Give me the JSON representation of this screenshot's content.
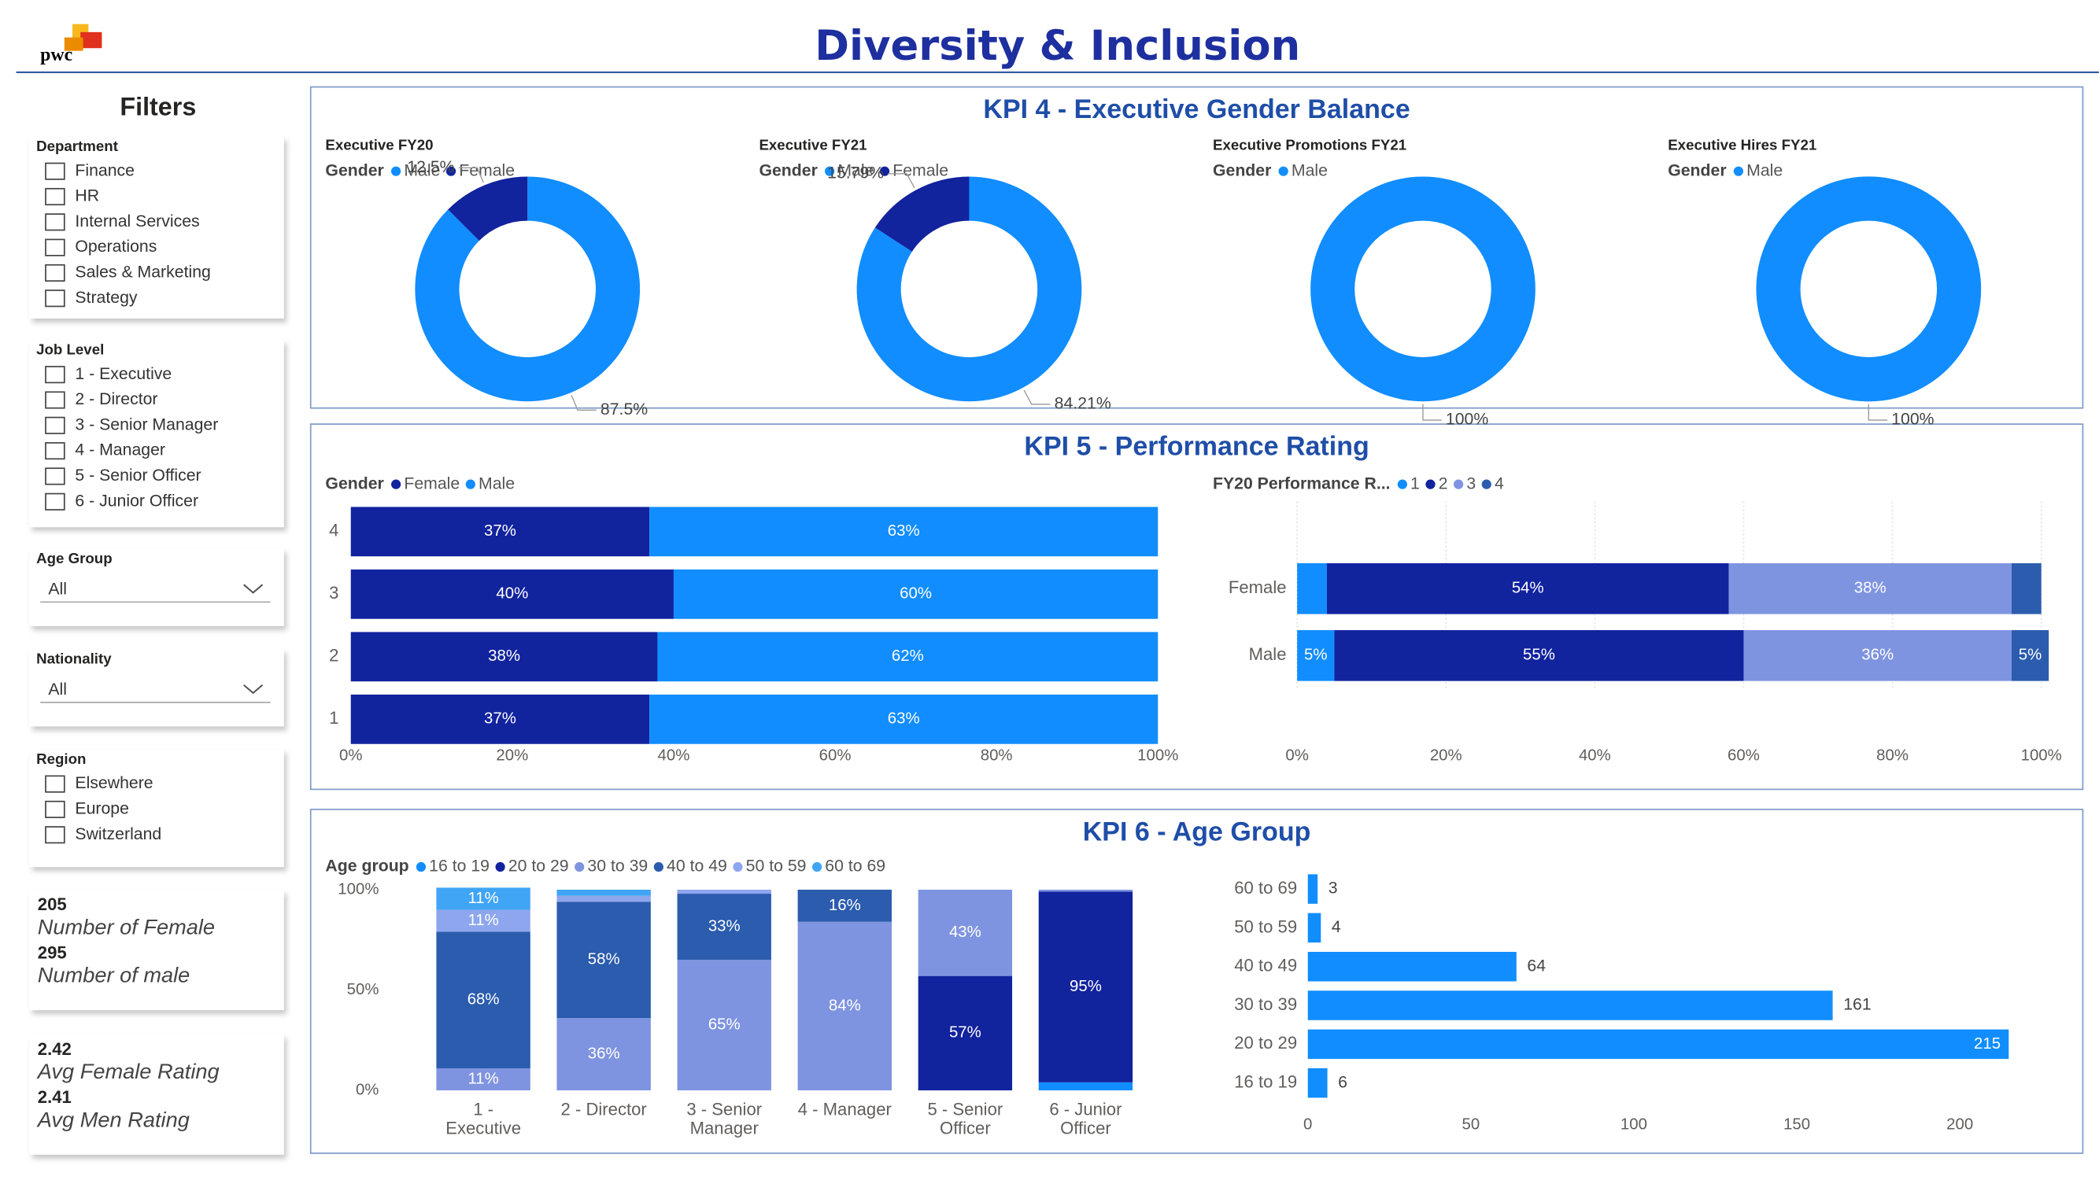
{
  "header": {
    "logo": "pwc",
    "title": "Diversity & Inclusion"
  },
  "filters": {
    "title": "Filters",
    "slicers": [
      {
        "title": "Department",
        "items": [
          "Finance",
          "HR",
          "Internal Services",
          "Operations",
          "Sales & Marketing",
          "Strategy"
        ]
      },
      {
        "title": "Job Level",
        "items": [
          "1 - Executive",
          "2 - Director",
          "3 - Senior Manager",
          "4 - Manager",
          "5 - Senior Officer",
          "6 - Junior Officer"
        ]
      },
      {
        "title": "Age Group",
        "selected": "All"
      },
      {
        "title": "Nationality",
        "selected": "All"
      },
      {
        "title": "Region",
        "items": [
          "Elsewhere",
          "Europe",
          "Switzerland"
        ]
      }
    ]
  },
  "cards": [
    [
      {
        "value": 205,
        "label": "Number of Female"
      },
      {
        "value": 295,
        "label": "Number of male"
      }
    ],
    [
      {
        "value": 2.42,
        "label": "Avg Female Rating"
      },
      {
        "value": 2.41,
        "label": "Avg Men Rating"
      }
    ]
  ],
  "panels": [
    {
      "title": "KPI 4 - Executive Gender Balance"
    },
    {
      "title": "KPI 5 - Performance Rating"
    },
    {
      "title": "KPI 6 - Age Group"
    }
  ],
  "chart_data": [
    {
      "type": "donut",
      "title": "Executive FY20",
      "legend_title": "Gender",
      "categories": [
        "Male",
        "Female"
      ],
      "colors": [
        "#118dff",
        "#12239e"
      ],
      "values": [
        87.5,
        12.5
      ],
      "value_labels": [
        "87.5%",
        "12.5%"
      ]
    },
    {
      "type": "donut",
      "title": "Executive FY21",
      "legend_title": "Gender",
      "categories": [
        "Male",
        "Female"
      ],
      "colors": [
        "#118dff",
        "#12239e"
      ],
      "values": [
        84.21,
        15.79
      ],
      "value_labels": [
        "84.21%",
        "15.79%"
      ]
    },
    {
      "type": "donut",
      "title": "Executive Promotions FY21",
      "legend_title": "Gender",
      "categories": [
        "Male"
      ],
      "colors": [
        "#118dff"
      ],
      "values": [
        100
      ],
      "value_labels": [
        "100%"
      ]
    },
    {
      "type": "donut",
      "title": "Executive Hires FY21",
      "legend_title": "Gender",
      "categories": [
        "Male"
      ],
      "colors": [
        "#118dff"
      ],
      "values": [
        100
      ],
      "value_labels": [
        "100%"
      ]
    },
    {
      "type": "stacked_bar",
      "legend_title": "Gender",
      "categories": [
        "4",
        "3",
        "2",
        "1"
      ],
      "series": [
        {
          "name": "Female",
          "color": "#12239e",
          "values": [
            37,
            40,
            38,
            37
          ],
          "value_labels": [
            "37%",
            "40%",
            "38%",
            "37%"
          ]
        },
        {
          "name": "Male",
          "color": "#118dff",
          "values": [
            63,
            60,
            62,
            63
          ],
          "value_labels": [
            "63%",
            "60%",
            "62%",
            "63%"
          ]
        }
      ],
      "xlim": [
        0,
        100
      ],
      "xticks": [
        {
          "value": 0,
          "label": "0%"
        },
        {
          "value": 20,
          "label": "20%"
        },
        {
          "value": 40,
          "label": "40%"
        },
        {
          "value": 60,
          "label": "60%"
        },
        {
          "value": 80,
          "label": "80%"
        },
        {
          "value": 100,
          "label": "100%"
        }
      ],
      "grid": false
    },
    {
      "type": "stacked_bar",
      "legend_title": "FY20 Performance R...",
      "categories": [
        "Female",
        "Male"
      ],
      "series": [
        {
          "name": "1",
          "color": "#118dff",
          "values": [
            4,
            5
          ],
          "value_labels": [
            null,
            "5%"
          ]
        },
        {
          "name": "2",
          "color": "#12239e",
          "values": [
            54,
            55
          ],
          "value_labels": [
            "54%",
            "55%"
          ]
        },
        {
          "name": "3",
          "color": "#7f94e0",
          "values": [
            38,
            36
          ],
          "value_labels": [
            "38%",
            "36%"
          ]
        },
        {
          "name": "4",
          "color": "#2b5cae",
          "values": [
            4,
            5
          ],
          "value_labels": [
            null,
            "5%"
          ]
        }
      ],
      "xlim": [
        0,
        100
      ],
      "xticks": [
        {
          "value": 0,
          "label": "0%"
        },
        {
          "value": 20,
          "label": "20%"
        },
        {
          "value": 40,
          "label": "40%"
        },
        {
          "value": 60,
          "label": "60%"
        },
        {
          "value": 80,
          "label": "80%"
        },
        {
          "value": 100,
          "label": "100%"
        }
      ],
      "grid": true
    },
    {
      "type": "stacked_column",
      "legend_title": "Age group",
      "categories": [
        "1 - Executive",
        "2 - Director",
        "3 - Senior Manager",
        "4 - Manager",
        "5 - Senior Officer",
        "6 - Junior Officer"
      ],
      "series": [
        {
          "name": "16 to 19",
          "color": "#118dff",
          "values": [
            0,
            0,
            0,
            0,
            0,
            4
          ],
          "value_labels": [
            null,
            null,
            null,
            null,
            null,
            null
          ]
        },
        {
          "name": "20 to 29",
          "color": "#12239e",
          "values": [
            0,
            0,
            0,
            0,
            57,
            95
          ],
          "value_labels": [
            null,
            null,
            null,
            null,
            "57%",
            "95%"
          ]
        },
        {
          "name": "30 to 39",
          "color": "#7f94e0",
          "values": [
            11,
            36,
            65,
            84,
            43,
            1
          ],
          "value_labels": [
            "11%",
            "36%",
            "65%",
            "84%",
            "43%",
            null
          ]
        },
        {
          "name": "40 to 49",
          "color": "#2b5cae",
          "values": [
            68,
            58,
            33,
            16,
            0,
            0
          ],
          "value_labels": [
            "68%",
            "58%",
            "33%",
            "16%",
            null,
            null
          ]
        },
        {
          "name": "50 to 59",
          "color": "#8ea6ee",
          "values": [
            11,
            3,
            2,
            0,
            0,
            0
          ],
          "value_labels": [
            "11%",
            null,
            null,
            null,
            null,
            null
          ]
        },
        {
          "name": "60 to 69",
          "color": "#41a5f5",
          "values": [
            11,
            3,
            0,
            0,
            0,
            0
          ],
          "value_labels": [
            "11%",
            null,
            null,
            null,
            null,
            null
          ]
        }
      ],
      "ylim": [
        0,
        100
      ],
      "yticks": [
        {
          "value": 0,
          "label": "0%"
        },
        {
          "value": 50,
          "label": "50%"
        },
        {
          "value": 100,
          "label": "100%"
        }
      ]
    },
    {
      "type": "bar_h",
      "categories": [
        "60 to 69",
        "50 to 59",
        "40 to 49",
        "30 to 39",
        "20 to 29",
        "16 to 19"
      ],
      "values": [
        3,
        4,
        64,
        161,
        215,
        6
      ],
      "color": "#118dff",
      "xlim": [
        0,
        225
      ],
      "xticks": [
        0,
        50,
        100,
        150,
        200
      ]
    }
  ]
}
